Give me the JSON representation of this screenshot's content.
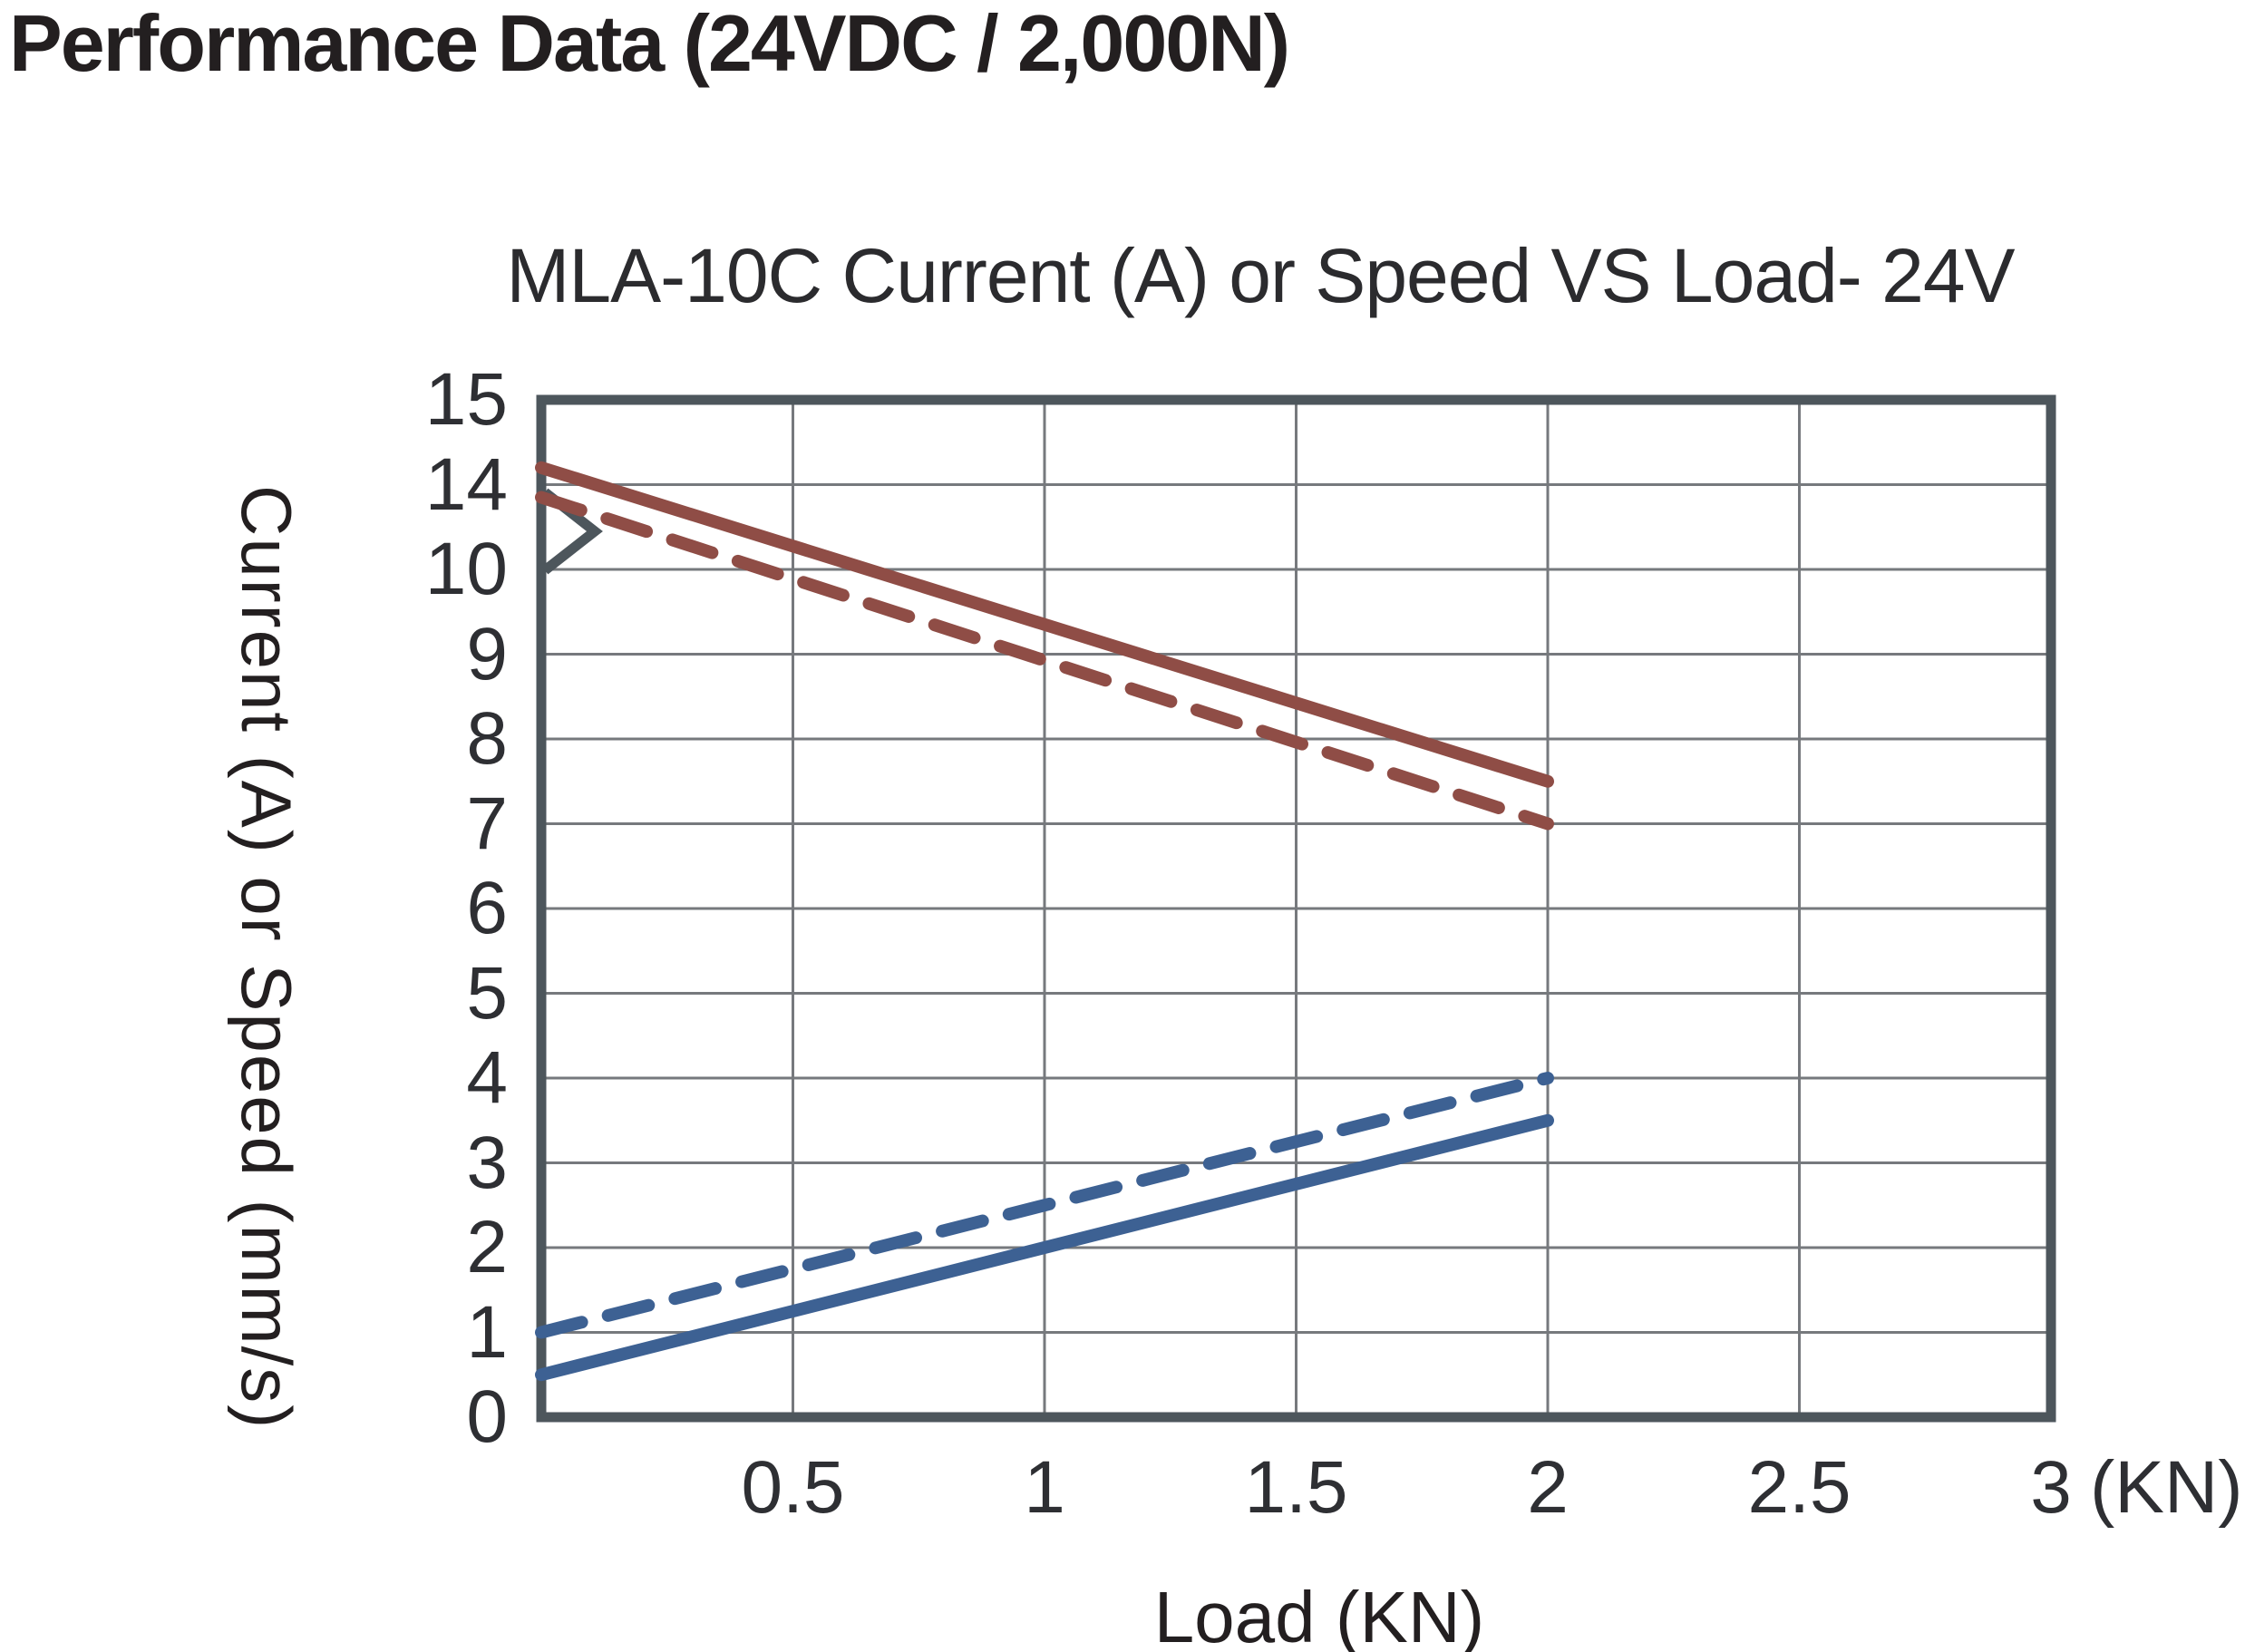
{
  "page": {
    "heading": "Performance Data (24VDC / 2,000N)"
  },
  "chart_data": {
    "type": "line",
    "title": "MLA-10C Current (A) or Speed VS Load- 24V",
    "xlabel": "Load (KN)",
    "ylabel": "Current (A) or Speed (mm/s)",
    "x_unit_suffix": "(KN)",
    "x_ticks": [
      "0.5",
      "1",
      "1.5",
      "2",
      "2.5",
      "3"
    ],
    "x_tick_values": [
      0.5,
      1,
      1.5,
      2,
      2.5,
      3
    ],
    "xlim": [
      0,
      3
    ],
    "y_ticks": [
      "15",
      "14",
      "10",
      "9",
      "8",
      "7",
      "6",
      "5",
      "4",
      "3",
      "2",
      "1",
      "0"
    ],
    "y_tick_values": [
      15,
      14,
      10,
      9,
      8,
      7,
      6,
      5,
      4,
      3,
      2,
      1,
      0
    ],
    "y_axis_break": {
      "between": [
        10,
        14
      ],
      "marker": "chevron-on-left-axis"
    },
    "grid": true,
    "legend": "none",
    "series": [
      {
        "name": "speed-vs-load-solid",
        "style": "solid",
        "color": "#8F4D46",
        "x": [
          0,
          2
        ],
        "y": [
          14.2,
          7.5
        ]
      },
      {
        "name": "speed-vs-load-dashed",
        "style": "dashed",
        "color": "#8F4D46",
        "x": [
          0,
          2
        ],
        "y": [
          13.4,
          7.0
        ]
      },
      {
        "name": "current-vs-load-solid",
        "style": "solid",
        "color": "#3D6193",
        "x": [
          0,
          2
        ],
        "y": [
          0.5,
          3.5
        ]
      },
      {
        "name": "current-vs-load-dashed",
        "style": "dashed",
        "color": "#3D6193",
        "x": [
          0,
          2
        ],
        "y": [
          1.0,
          4.0
        ]
      }
    ],
    "colors": {
      "axis_border": "#4D565C",
      "gridline": "#76797D",
      "text": "#2E2F33",
      "heading_text": "#231F20"
    }
  }
}
